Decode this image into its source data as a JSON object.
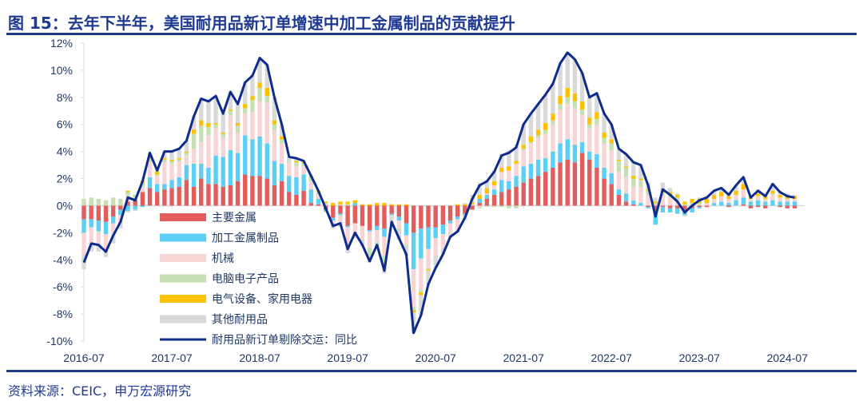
{
  "title": "图 15：去年下半年，美国耐用品新订单增速中加工金属制品的贡献提升",
  "source": "资料来源：CEIC，申万宏源研究",
  "chart_data": {
    "type": "bar",
    "subtype": "stacked bar with line",
    "ylim": [
      -10,
      12
    ],
    "yticks": [
      "12%",
      "10%",
      "8%",
      "6%",
      "4%",
      "2%",
      "0%",
      "-2%",
      "-4%",
      "-6%",
      "-8%",
      "-10%"
    ],
    "ytick_values": [
      12,
      10,
      8,
      6,
      4,
      2,
      0,
      -2,
      -4,
      -6,
      -8,
      -10
    ],
    "xticks": [
      "2016-07",
      "2017-07",
      "2018-07",
      "2019-07",
      "2020-07",
      "2021-07",
      "2022-07",
      "2023-07",
      "2024-07"
    ],
    "grid": false,
    "legend_placement": "bottom-left inside",
    "series": [
      {
        "name": "主要金属",
        "kind": "bar",
        "color": "#e35d5d"
      },
      {
        "name": "加工金属制品",
        "kind": "bar",
        "color": "#5bcff5"
      },
      {
        "name": "机械",
        "kind": "bar",
        "color": "#f8d4d4"
      },
      {
        "name": "电脑电子产品",
        "kind": "bar",
        "color": "#c5e0b3"
      },
      {
        "name": "电气设备、家用电器",
        "kind": "bar",
        "color": "#ffc000"
      },
      {
        "name": "其他耐用品",
        "kind": "bar",
        "color": "#d9d9d9"
      },
      {
        "name": "耐用品新订单剔除交运：同比",
        "kind": "line",
        "color": "#0d2c8c"
      }
    ],
    "row_format": [
      "month",
      "line",
      "主要金属",
      "加工金属制品",
      "机械",
      "电脑电子产品",
      "电气设备、家用电器",
      "其他耐用品"
    ],
    "rows": [
      [
        "2016-07",
        -4.2,
        -1.0,
        -1.0,
        -1.6,
        0.5,
        0,
        -1.1
      ],
      [
        "2016-08",
        -2.8,
        -1.0,
        -0.6,
        -1.2,
        0.6,
        0,
        -0.6
      ],
      [
        "2016-09",
        -2.9,
        -1.1,
        -0.8,
        -1.0,
        0.5,
        0,
        -0.5
      ],
      [
        "2016-10",
        -3.4,
        -1.2,
        -0.9,
        -1.1,
        0.4,
        0,
        -0.6
      ],
      [
        "2016-11",
        -2.2,
        -0.8,
        -0.5,
        -0.9,
        0.6,
        0,
        -0.6
      ],
      [
        "2016-12",
        -1.2,
        -0.3,
        -0.4,
        -0.6,
        0.5,
        0,
        -0.4
      ],
      [
        "2017-01",
        0.6,
        0.3,
        -0.4,
        0.3,
        0.4,
        0.1,
        -0.1
      ],
      [
        "2017-02",
        0.4,
        0.4,
        -0.3,
        0.0,
        0.4,
        0.0,
        -0.1
      ],
      [
        "2017-03",
        1.8,
        1.0,
        -0.1,
        0.4,
        0.3,
        0.1,
        0.1
      ],
      [
        "2017-04",
        3.9,
        1.3,
        0.8,
        1.1,
        0.3,
        0.1,
        0.3
      ],
      [
        "2017-05",
        2.6,
        1.0,
        0.6,
        0.6,
        0.1,
        0.2,
        0.1
      ],
      [
        "2017-06",
        4.0,
        1.2,
        0.4,
        1.6,
        0.2,
        0.1,
        0.5
      ],
      [
        "2017-07",
        4.0,
        1.3,
        0.6,
        1.2,
        0.2,
        0.1,
        0.6
      ],
      [
        "2017-08",
        4.2,
        1.4,
        0.7,
        1.2,
        0.1,
        0.1,
        0.7
      ],
      [
        "2017-09",
        4.8,
        1.9,
        1.1,
        0.7,
        0.2,
        0.1,
        0.8
      ],
      [
        "2017-10",
        6.6,
        1.4,
        1.7,
        1.1,
        1.1,
        0.3,
        1.0
      ],
      [
        "2017-11",
        7.9,
        2.0,
        1.1,
        1.6,
        1.2,
        0.4,
        1.6
      ],
      [
        "2017-12",
        7.7,
        1.6,
        1.2,
        2.4,
        0.6,
        0.3,
        1.6
      ],
      [
        "2018-01",
        8.1,
        1.6,
        2.1,
        2.0,
        0.3,
        0.1,
        2.0
      ],
      [
        "2018-02",
        6.8,
        1.4,
        2.2,
        1.4,
        0.3,
        0.1,
        1.4
      ],
      [
        "2018-03",
        8.4,
        1.5,
        2.6,
        2.6,
        0.3,
        0.1,
        1.3
      ],
      [
        "2018-04",
        7.5,
        1.8,
        2.1,
        1.5,
        0.5,
        0.2,
        1.4
      ],
      [
        "2018-05",
        9.1,
        2.3,
        2.9,
        1.6,
        0.4,
        0.3,
        1.6
      ],
      [
        "2018-06",
        9.6,
        2.2,
        2.7,
        2.0,
        0.9,
        0.3,
        1.5
      ],
      [
        "2018-07",
        10.9,
        2.2,
        2.9,
        2.6,
        1.0,
        0.4,
        1.8
      ],
      [
        "2018-08",
        10.4,
        2.0,
        2.6,
        3.0,
        0.5,
        0.6,
        1.7
      ],
      [
        "2018-09",
        8.0,
        1.5,
        1.8,
        2.3,
        0.4,
        0.3,
        1.7
      ],
      [
        "2018-10",
        6.0,
        1.8,
        1.3,
        1.5,
        0.3,
        0.2,
        0.9
      ],
      [
        "2018-11",
        3.6,
        1.0,
        1.2,
        1.0,
        0.1,
        0.0,
        0.3
      ],
      [
        "2018-12",
        3.5,
        0.8,
        1.3,
        0.8,
        0.3,
        0.1,
        0.2
      ],
      [
        "2019-01",
        3.3,
        1.1,
        1.2,
        0.6,
        0.2,
        0.1,
        0.1
      ],
      [
        "2019-02",
        2.2,
        0.2,
        1.0,
        0.6,
        0.3,
        0.1,
        0.0
      ],
      [
        "2019-03",
        1.1,
        0.1,
        0.4,
        0.3,
        0.2,
        0.1,
        0.0
      ],
      [
        "2019-04",
        -0.2,
        -0.3,
        -0.1,
        0.1,
        0.1,
        0.1,
        -0.1
      ],
      [
        "2019-05",
        -1.5,
        -0.9,
        -0.2,
        -0.2,
        -0.1,
        0.2,
        -0.3
      ],
      [
        "2019-06",
        -1.3,
        -0.6,
        -0.1,
        -0.5,
        0.1,
        0.2,
        -0.4
      ],
      [
        "2019-07",
        -3.2,
        -1.5,
        -0.1,
        -1.3,
        0.1,
        0.2,
        -0.6
      ],
      [
        "2019-08",
        -2.0,
        -1.3,
        0.2,
        -0.8,
        0.0,
        0.2,
        -0.3
      ],
      [
        "2019-09",
        -2.9,
        -1.5,
        0.0,
        -1.0,
        -0.1,
        0.1,
        -0.4
      ],
      [
        "2019-10",
        -4.1,
        -1.8,
        -0.1,
        -1.2,
        -0.6,
        0.1,
        -0.5
      ],
      [
        "2019-11",
        -2.9,
        -1.5,
        -0.3,
        -0.9,
        -0.2,
        0.2,
        -0.2
      ],
      [
        "2019-12",
        -4.8,
        -1.7,
        -0.6,
        -1.4,
        -0.5,
        0.2,
        -0.8
      ],
      [
        "2020-01",
        -1.2,
        -0.6,
        -0.1,
        -0.1,
        0.0,
        0.1,
        -0.5
      ],
      [
        "2020-02",
        -2.4,
        -0.8,
        -0.3,
        -0.6,
        -0.2,
        0.1,
        -0.6
      ],
      [
        "2020-03",
        -3.6,
        -1.3,
        -0.9,
        -0.7,
        -0.1,
        0.1,
        -0.7
      ],
      [
        "2020-04",
        -9.4,
        -2.0,
        -2.7,
        -2.8,
        -0.2,
        -0.2,
        -1.5
      ],
      [
        "2020-05",
        -8.1,
        -1.7,
        -2.2,
        -2.3,
        -0.2,
        -0.2,
        -1.5
      ],
      [
        "2020-06",
        -5.8,
        -1.6,
        -1.6,
        -1.4,
        -0.1,
        -0.1,
        -1.0
      ],
      [
        "2020-07",
        -4.6,
        -1.6,
        -0.8,
        -1.3,
        -0.1,
        0.0,
        -0.8
      ],
      [
        "2020-08",
        -3.6,
        -1.4,
        -0.7,
        -1.0,
        0.0,
        0.0,
        -0.5
      ],
      [
        "2020-09",
        -2.3,
        -1.1,
        -0.2,
        -0.7,
        0.0,
        0.0,
        -0.3
      ],
      [
        "2020-10",
        -1.9,
        -0.8,
        -0.2,
        -0.8,
        0.0,
        0.1,
        -0.2
      ],
      [
        "2020-11",
        -0.9,
        -0.6,
        -0.1,
        -0.4,
        0.0,
        0.1,
        0.1
      ],
      [
        "2020-12",
        0.5,
        -0.3,
        0.0,
        0.1,
        0.0,
        0.1,
        0.6
      ],
      [
        "2021-01",
        1.5,
        0.2,
        0.3,
        -0.1,
        -0.1,
        0.3,
        0.9
      ],
      [
        "2021-02",
        1.8,
        0.5,
        0.3,
        0.1,
        -0.1,
        0.4,
        0.6
      ],
      [
        "2021-03",
        2.5,
        0.8,
        0.4,
        0.3,
        -0.1,
        0.3,
        0.8
      ],
      [
        "2021-04",
        3.7,
        1.0,
        0.9,
        0.6,
        -0.1,
        0.3,
        1.0
      ],
      [
        "2021-05",
        3.9,
        1.2,
        0.6,
        0.8,
        -0.2,
        0.3,
        1.2
      ],
      [
        "2021-06",
        4.3,
        1.4,
        0.8,
        0.9,
        -0.2,
        0.2,
        1.2
      ],
      [
        "2021-07",
        6.0,
        1.7,
        1.2,
        1.2,
        0.1,
        0.3,
        1.5
      ],
      [
        "2021-08",
        6.8,
        2.0,
        1.1,
        1.5,
        0.1,
        0.4,
        1.7
      ],
      [
        "2021-09",
        7.5,
        2.2,
        1.2,
        1.6,
        0.2,
        0.4,
        1.9
      ],
      [
        "2021-10",
        8.2,
        2.5,
        1.0,
        1.8,
        0.3,
        0.5,
        2.1
      ],
      [
        "2021-11",
        9.0,
        2.8,
        1.2,
        2.0,
        0.3,
        0.5,
        2.2
      ],
      [
        "2021-12",
        10.5,
        3.2,
        1.4,
        2.5,
        0.4,
        0.6,
        2.4
      ],
      [
        "2022-01",
        11.3,
        3.4,
        1.5,
        2.6,
        0.5,
        0.7,
        2.6
      ],
      [
        "2022-02",
        10.8,
        3.2,
        1.3,
        2.7,
        0.5,
        0.6,
        2.5
      ],
      [
        "2022-03",
        9.8,
        3.9,
        0.8,
        2.0,
        0.4,
        0.6,
        2.1
      ],
      [
        "2022-04",
        8.0,
        3.4,
        0.6,
        1.7,
        0.3,
        0.5,
        1.5
      ],
      [
        "2022-05",
        8.3,
        2.8,
        1.0,
        2.2,
        0.4,
        0.5,
        1.4
      ],
      [
        "2022-06",
        6.8,
        2.0,
        0.8,
        1.8,
        0.4,
        0.4,
        1.4
      ],
      [
        "2022-07",
        6.0,
        1.6,
        0.8,
        1.7,
        0.5,
        0.3,
        1.1
      ],
      [
        "2022-08",
        4.2,
        0.8,
        0.4,
        1.3,
        0.8,
        0.1,
        0.8
      ],
      [
        "2022-09",
        3.8,
        0.3,
        0.6,
        1.2,
        0.7,
        0.1,
        0.9
      ],
      [
        "2022-10",
        3.2,
        0.1,
        0.3,
        1.0,
        0.6,
        0.2,
        1.0
      ],
      [
        "2022-11",
        3.0,
        0.0,
        0.2,
        1.2,
        0.5,
        0.1,
        1.0
      ],
      [
        "2022-12",
        1.5,
        -0.1,
        -0.1,
        0.8,
        0.3,
        0.1,
        0.5
      ],
      [
        "2023-01",
        -0.8,
        -0.3,
        -1.1,
        0.1,
        0.1,
        0.1,
        0.3
      ],
      [
        "2023-02",
        1.2,
        -0.1,
        -0.4,
        0.8,
        0.2,
        0.1,
        0.6
      ],
      [
        "2023-03",
        0.8,
        -0.2,
        -0.3,
        0.6,
        0.2,
        0.2,
        0.3
      ],
      [
        "2023-04",
        0.3,
        -0.2,
        -0.4,
        0.4,
        0.2,
        0.2,
        0.1
      ],
      [
        "2023-05",
        -0.5,
        -0.3,
        -0.4,
        0.0,
        0.1,
        0.2,
        -0.1
      ],
      [
        "2023-06",
        0.0,
        -0.2,
        -0.3,
        0.1,
        0.1,
        0.3,
        0.0
      ],
      [
        "2023-07",
        0.4,
        -0.1,
        -0.1,
        0.1,
        0.1,
        0.3,
        0.1
      ],
      [
        "2023-08",
        0.6,
        -0.1,
        0.0,
        0.2,
        0.0,
        0.3,
        0.2
      ],
      [
        "2023-09",
        1.1,
        0.0,
        0.2,
        0.3,
        0.0,
        0.3,
        0.3
      ],
      [
        "2023-10",
        1.3,
        0.0,
        0.3,
        0.4,
        0.0,
        0.3,
        0.3
      ],
      [
        "2023-11",
        0.8,
        -0.1,
        0.2,
        0.3,
        0.0,
        0.2,
        0.2
      ],
      [
        "2023-12",
        1.5,
        0.0,
        0.4,
        0.4,
        0.0,
        0.3,
        0.4
      ],
      [
        "2024-01",
        2.1,
        0.1,
        0.5,
        0.6,
        0.0,
        0.4,
        0.5
      ],
      [
        "2024-02",
        0.6,
        -0.2,
        0.3,
        0.2,
        0.0,
        0.2,
        0.1
      ],
      [
        "2024-03",
        1.1,
        -0.1,
        0.4,
        0.3,
        0.0,
        0.2,
        0.3
      ],
      [
        "2024-04",
        0.7,
        -0.2,
        0.3,
        0.2,
        0.0,
        0.2,
        0.2
      ],
      [
        "2024-05",
        1.6,
        0.0,
        0.4,
        0.4,
        0.1,
        0.2,
        0.5
      ],
      [
        "2024-06",
        1.0,
        -0.1,
        0.3,
        0.3,
        0.0,
        0.2,
        0.3
      ],
      [
        "2024-07",
        0.7,
        -0.2,
        0.3,
        0.2,
        0.0,
        0.2,
        0.2
      ],
      [
        "2024-08",
        0.6,
        -0.2,
        0.3,
        0.2,
        0.0,
        0.2,
        0.1
      ]
    ]
  }
}
